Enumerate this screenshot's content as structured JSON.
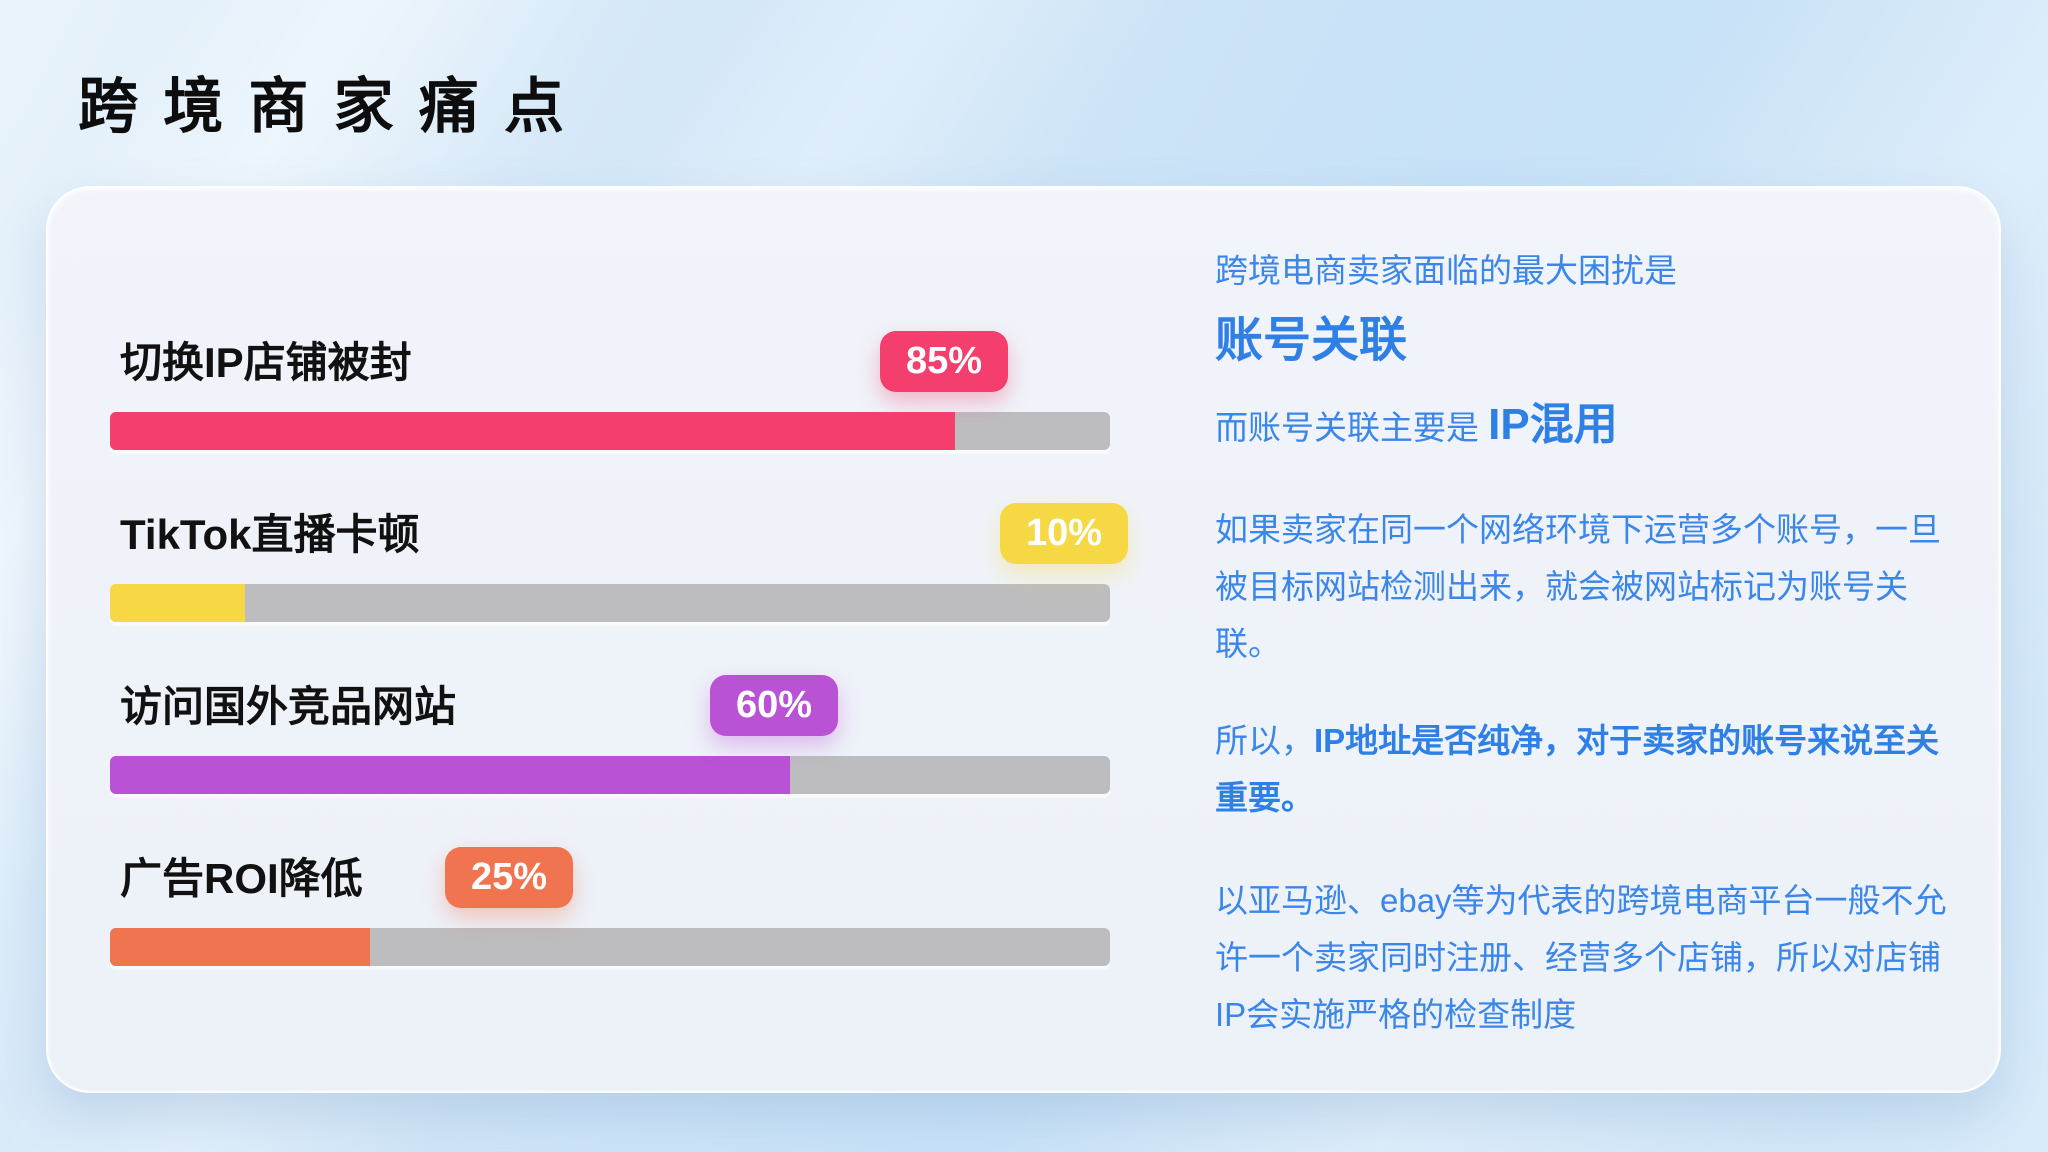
{
  "page": {
    "title": "跨境商家痛点"
  },
  "colors": {
    "background_blue": "#CEE5F8",
    "card_background": "#EFF3F9",
    "track_gray": "#BDBDBF",
    "text_black": "#111111",
    "text_blue_regular": "#3A86E9",
    "text_blue_bold": "#2E80E6",
    "bar_pink": "#F43F6E",
    "bar_yellow": "#F6D845",
    "bar_purple": "#BA52D5",
    "bar_orange": "#F0744F"
  },
  "chart_data": {
    "type": "bar",
    "orientation": "horizontal",
    "title": "跨境商家痛点",
    "unit": "%",
    "categories": [
      "切换IP店铺被封",
      "TikTok直播卡顿",
      "访问国外竞品网站",
      "广告ROI降低"
    ],
    "values": [
      85,
      10,
      60,
      25
    ],
    "xlim": [
      0,
      100
    ],
    "grid": false,
    "legend": false,
    "bars": [
      {
        "label": "切换IP店铺被封",
        "value": 85,
        "value_label": "85%",
        "color": "#F43F6E",
        "fill_pct": 84.5,
        "badge_left_pct": 77
      },
      {
        "label": "TikTok直播卡顿",
        "value": 10,
        "value_label": "10%",
        "color": "#F6D845",
        "fill_pct": 13.5,
        "badge_left_pct": 89
      },
      {
        "label": "访问国外竞品网站",
        "value": 60,
        "value_label": "60%",
        "color": "#BA52D5",
        "fill_pct": 68,
        "badge_left_pct": 60
      },
      {
        "label": "广告ROI降低",
        "value": 25,
        "value_label": "25%",
        "color": "#F0744F",
        "fill_pct": 26,
        "badge_left_pct": 33.5
      }
    ]
  },
  "info_panel": {
    "intro_line": "跨境电商卖家面临的最大困扰是",
    "headline": "账号关联",
    "subline_prefix": "而账号关联主要是 ",
    "subline_emphasis": "IP混用",
    "paragraph_1": "如果卖家在同一个网络环境下运营多个账号，一旦被目标网站检测出来，就会被网站标记为账号关联。",
    "paragraph_2_prefix": "所以，",
    "paragraph_2_bold": "IP地址是否纯净，对于卖家的账号来说至关重要。",
    "paragraph_3": "以亚马逊、ebay等为代表的跨境电商平台一般不允许一个卖家同时注册、经营多个店铺，所以对店铺IP会实施严格的检查制度"
  }
}
